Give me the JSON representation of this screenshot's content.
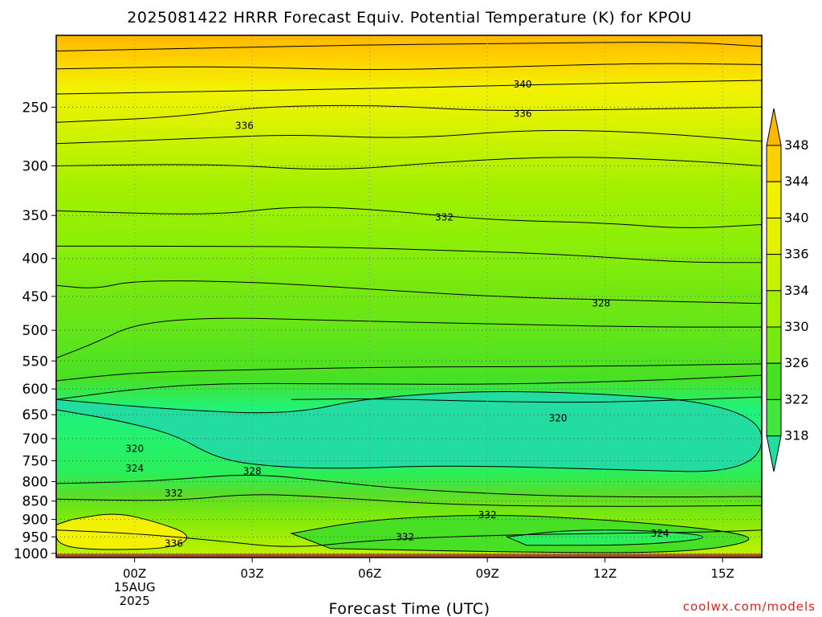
{
  "chart_data": {
    "type": "heatmap",
    "title": "2025081422 HRRR Forecast Equiv. Potential Temperature (K) for KPOU",
    "xlabel": "Forecast Time (UTC)",
    "ylabel": "",
    "watermark": "coolwx.com/models",
    "x_ticks": [
      {
        "hour": 0,
        "label": "00Z"
      },
      {
        "hour": 3,
        "label": "03Z"
      },
      {
        "hour": 6,
        "label": "06Z"
      },
      {
        "hour": 9,
        "label": "09Z"
      },
      {
        "hour": 12,
        "label": "12Z"
      },
      {
        "hour": 15,
        "label": "15Z"
      }
    ],
    "x_date_lines": [
      "15AUG",
      "2025"
    ],
    "xlim": [
      -2,
      16
    ],
    "y_ticks": [
      250,
      300,
      350,
      400,
      450,
      500,
      550,
      600,
      650,
      700,
      750,
      800,
      850,
      900,
      950,
      1000
    ],
    "ylim": [
      1013,
      200
    ],
    "y_scale": "log",
    "grid": true,
    "colorbar": {
      "levels": [
        318,
        322,
        326,
        330,
        334,
        336,
        340,
        344,
        348
      ],
      "colors": {
        "below_318": "#22dca0",
        "318": "#1ff37e",
        "320": "#2aef5a",
        "322": "#42e63c",
        "324": "#58dd2a",
        "326": "#48e024",
        "328": "#64e61a",
        "330": "#76e810",
        "332": "#8cef08",
        "334": "#a4f000",
        "336": "#c8f200",
        "338": "#e2f200",
        "340": "#f2f200",
        "342": "#f8e000",
        "344": "#ffd000",
        "346": "#ffb800",
        "348": "#ffb000"
      },
      "extend": "both"
    },
    "contour_labels": [
      {
        "value": "340",
        "hour": 9.9,
        "p": 233
      },
      {
        "value": "336",
        "hour": 9.9,
        "p": 255
      },
      {
        "value": "336",
        "hour": 2.8,
        "p": 265
      },
      {
        "value": "332",
        "hour": 7.9,
        "p": 352
      },
      {
        "value": "328",
        "hour": 11.9,
        "p": 460
      },
      {
        "value": "320",
        "hour": 10.8,
        "p": 657
      },
      {
        "value": "320",
        "hour": 0.0,
        "p": 722
      },
      {
        "value": "324",
        "hour": 0.0,
        "p": 768
      },
      {
        "value": "328",
        "hour": 3.0,
        "p": 775
      },
      {
        "value": "332",
        "hour": 1.0,
        "p": 830
      },
      {
        "value": "332",
        "hour": 9.0,
        "p": 888
      },
      {
        "value": "332",
        "hour": 6.9,
        "p": 950
      },
      {
        "value": "324",
        "hour": 13.4,
        "p": 940
      },
      {
        "value": "336",
        "hour": 1.0,
        "p": 970
      }
    ],
    "surface_color": "#a0522d",
    "surface_pressure": 1013
  }
}
